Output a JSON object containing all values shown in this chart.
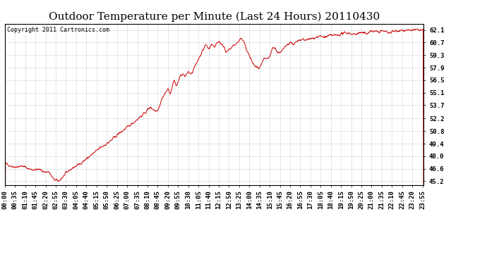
{
  "title": "Outdoor Temperature per Minute (Last 24 Hours) 20110430",
  "copyright_text": "Copyright 2011 Cartronics.com",
  "line_color": "#cc0000",
  "background_color": "#ffffff",
  "plot_bg_color": "#ffffff",
  "grid_color": "#bbbbbb",
  "y_ticks": [
    45.2,
    46.6,
    48.0,
    49.4,
    50.8,
    52.2,
    53.7,
    55.1,
    56.5,
    57.9,
    59.3,
    60.7,
    62.1
  ],
  "y_min": 44.8,
  "y_max": 62.8,
  "x_tick_labels": [
    "00:00",
    "00:35",
    "01:10",
    "01:45",
    "02:20",
    "02:55",
    "03:30",
    "04:05",
    "04:40",
    "05:15",
    "05:50",
    "06:25",
    "07:00",
    "07:35",
    "08:10",
    "08:45",
    "09:20",
    "09:55",
    "10:30",
    "11:05",
    "11:40",
    "12:15",
    "12:50",
    "13:25",
    "14:00",
    "14:35",
    "15:10",
    "15:45",
    "16:20",
    "16:55",
    "17:30",
    "18:05",
    "18:40",
    "19:15",
    "19:50",
    "20:25",
    "21:00",
    "21:35",
    "22:10",
    "22:45",
    "23:20",
    "23:55"
  ],
  "title_fontsize": 11,
  "tick_fontsize": 6.5,
  "copyright_fontsize": 6.0,
  "control_points": [
    [
      0,
      47.2
    ],
    [
      30,
      46.8
    ],
    [
      60,
      46.9
    ],
    [
      90,
      46.5
    ],
    [
      120,
      46.5
    ],
    [
      140,
      46.2
    ],
    [
      150,
      46.3
    ],
    [
      165,
      45.5
    ],
    [
      175,
      45.3
    ],
    [
      185,
      45.2
    ],
    [
      200,
      45.7
    ],
    [
      220,
      46.4
    ],
    [
      240,
      46.8
    ],
    [
      260,
      47.2
    ],
    [
      300,
      48.2
    ],
    [
      330,
      49.0
    ],
    [
      360,
      49.6
    ],
    [
      390,
      50.5
    ],
    [
      420,
      51.2
    ],
    [
      450,
      52.0
    ],
    [
      480,
      52.8
    ],
    [
      500,
      53.5
    ],
    [
      520,
      53.0
    ],
    [
      530,
      53.5
    ],
    [
      540,
      54.5
    ],
    [
      560,
      55.5
    ],
    [
      570,
      55.0
    ],
    [
      580,
      56.5
    ],
    [
      590,
      55.8
    ],
    [
      600,
      56.8
    ],
    [
      610,
      57.2
    ],
    [
      620,
      56.8
    ],
    [
      630,
      57.5
    ],
    [
      640,
      57.2
    ],
    [
      650,
      57.8
    ],
    [
      660,
      58.5
    ],
    [
      670,
      59.2
    ],
    [
      680,
      59.8
    ],
    [
      690,
      60.5
    ],
    [
      700,
      60.0
    ],
    [
      710,
      60.5
    ],
    [
      720,
      60.2
    ],
    [
      730,
      60.8
    ],
    [
      750,
      60.5
    ],
    [
      760,
      59.5
    ],
    [
      780,
      60.2
    ],
    [
      800,
      60.7
    ],
    [
      810,
      61.2
    ],
    [
      820,
      60.8
    ],
    [
      840,
      59.2
    ],
    [
      850,
      58.5
    ],
    [
      860,
      58.0
    ],
    [
      875,
      57.8
    ],
    [
      890,
      58.8
    ],
    [
      910,
      59.0
    ],
    [
      920,
      60.2
    ],
    [
      930,
      60.0
    ],
    [
      940,
      59.5
    ],
    [
      960,
      60.0
    ],
    [
      970,
      60.5
    ],
    [
      980,
      60.8
    ],
    [
      990,
      60.5
    ],
    [
      1000,
      60.7
    ],
    [
      1020,
      61.0
    ],
    [
      1040,
      61.0
    ],
    [
      1060,
      61.2
    ],
    [
      1080,
      61.4
    ],
    [
      1100,
      61.3
    ],
    [
      1120,
      61.5
    ],
    [
      1140,
      61.5
    ],
    [
      1160,
      61.7
    ],
    [
      1180,
      61.8
    ],
    [
      1200,
      61.6
    ],
    [
      1220,
      61.8
    ],
    [
      1240,
      61.7
    ],
    [
      1260,
      62.0
    ],
    [
      1280,
      61.9
    ],
    [
      1300,
      62.0
    ],
    [
      1320,
      61.8
    ],
    [
      1340,
      62.0
    ],
    [
      1360,
      62.1
    ],
    [
      1380,
      62.0
    ],
    [
      1400,
      62.1
    ],
    [
      1420,
      62.1
    ],
    [
      1439,
      62.1
    ]
  ]
}
